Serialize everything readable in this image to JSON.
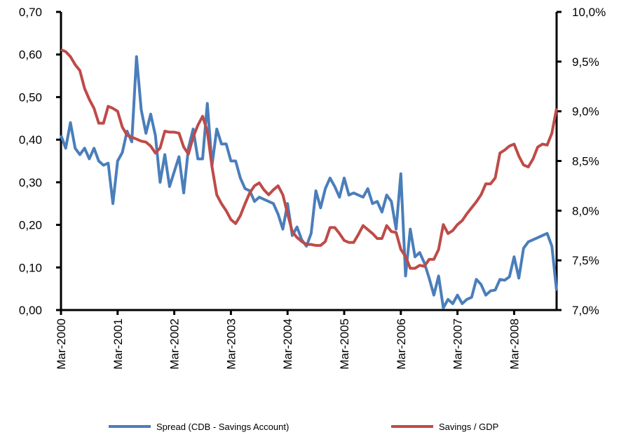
{
  "chart_data": {
    "type": "line",
    "categories": [
      "Mar-2000",
      null,
      null,
      null,
      null,
      null,
      null,
      null,
      null,
      null,
      null,
      null,
      "Mar-2001",
      null,
      null,
      null,
      null,
      null,
      null,
      null,
      null,
      null,
      null,
      null,
      "Mar-2002",
      null,
      null,
      null,
      null,
      null,
      null,
      null,
      null,
      null,
      null,
      null,
      "Mar-2003",
      null,
      null,
      null,
      null,
      null,
      null,
      null,
      null,
      null,
      null,
      null,
      "Mar-2004",
      null,
      null,
      null,
      null,
      null,
      null,
      null,
      null,
      null,
      null,
      null,
      "Mar-2005",
      null,
      null,
      null,
      null,
      null,
      null,
      null,
      null,
      null,
      null,
      null,
      "Mar-2006",
      null,
      null,
      null,
      null,
      null,
      null,
      null,
      null,
      null,
      null,
      null,
      "Mar-2007",
      null,
      null,
      null,
      null,
      null,
      null,
      null,
      null,
      null,
      null,
      null,
      "Mar-2008",
      null,
      null,
      null,
      null,
      null,
      null,
      null,
      null,
      null
    ],
    "series": [
      {
        "name": "Spread (CDB - Savings Account)",
        "color": "#4a7ebb",
        "axis": "y",
        "values": [
          0.41,
          0.38,
          0.44,
          0.38,
          0.365,
          0.38,
          0.355,
          0.38,
          0.35,
          0.34,
          0.345,
          0.25,
          0.35,
          0.37,
          0.42,
          0.395,
          0.595,
          0.47,
          0.415,
          0.46,
          0.41,
          0.3,
          0.365,
          0.29,
          0.325,
          0.36,
          0.275,
          0.38,
          0.425,
          0.355,
          0.355,
          0.485,
          0.34,
          0.425,
          0.39,
          0.39,
          0.35,
          0.35,
          0.31,
          0.285,
          0.28,
          0.255,
          0.265,
          0.26,
          0.255,
          0.25,
          0.225,
          0.19,
          0.25,
          0.175,
          0.195,
          0.165,
          0.15,
          0.18,
          0.28,
          0.24,
          0.285,
          0.31,
          0.29,
          0.265,
          0.31,
          0.27,
          0.275,
          0.27,
          0.265,
          0.285,
          0.25,
          0.255,
          0.23,
          0.27,
          0.255,
          0.19,
          0.32,
          0.08,
          0.19,
          0.125,
          0.135,
          0.11,
          0.075,
          0.035,
          0.08,
          0.005,
          0.025,
          0.015,
          0.035,
          0.015,
          0.025,
          0.03,
          0.072,
          0.06,
          0.035,
          0.045,
          0.047,
          0.072,
          0.07,
          0.078,
          0.125,
          0.075,
          0.145,
          0.16,
          0.165,
          0.17,
          0.175,
          0.18,
          0.15,
          0.045
        ]
      },
      {
        "name": "Savings / GDP",
        "color": "#be4b48",
        "axis": "y2",
        "values": [
          9.62,
          9.6,
          9.55,
          9.47,
          9.41,
          9.23,
          9.12,
          9.03,
          8.88,
          8.88,
          9.05,
          9.03,
          9.0,
          8.84,
          8.76,
          8.74,
          8.72,
          8.7,
          8.69,
          8.65,
          8.58,
          8.63,
          8.8,
          8.79,
          8.79,
          8.78,
          8.64,
          8.57,
          8.74,
          8.86,
          8.95,
          8.8,
          8.44,
          8.16,
          8.07,
          8.0,
          7.91,
          7.87,
          7.95,
          8.07,
          8.18,
          8.25,
          8.28,
          8.21,
          8.16,
          8.21,
          8.25,
          8.16,
          7.97,
          7.79,
          7.73,
          7.69,
          7.66,
          7.66,
          7.65,
          7.65,
          7.69,
          7.83,
          7.83,
          7.77,
          7.7,
          7.68,
          7.68,
          7.76,
          7.85,
          7.81,
          7.77,
          7.72,
          7.72,
          7.85,
          7.79,
          7.78,
          7.61,
          7.54,
          7.42,
          7.42,
          7.45,
          7.44,
          7.51,
          7.51,
          7.61,
          7.86,
          7.77,
          7.8,
          7.86,
          7.9,
          7.97,
          8.03,
          8.09,
          8.16,
          8.27,
          8.27,
          8.33,
          8.58,
          8.61,
          8.65,
          8.67,
          8.55,
          8.46,
          8.44,
          8.52,
          8.64,
          8.67,
          8.66,
          8.78,
          9.03
        ]
      }
    ],
    "ylim": [
      0,
      0.7
    ],
    "yticks": [
      {
        "value": 0,
        "label": "0,00"
      },
      {
        "value": 0.1,
        "label": "0,10"
      },
      {
        "value": 0.2,
        "label": "0,20"
      },
      {
        "value": 0.3,
        "label": "0,30"
      },
      {
        "value": 0.4,
        "label": "0,40"
      },
      {
        "value": 0.5,
        "label": "0,50"
      },
      {
        "value": 0.6,
        "label": "0,60"
      },
      {
        "value": 0.7,
        "label": "0,70"
      }
    ],
    "y2lim": [
      7.0,
      10.0
    ],
    "y2ticks": [
      {
        "value": 7.0,
        "label": "7,0%"
      },
      {
        "value": 7.5,
        "label": "7,5%"
      },
      {
        "value": 8.0,
        "label": "8,0%"
      },
      {
        "value": 8.5,
        "label": "8,5%"
      },
      {
        "value": 9.0,
        "label": "9,0%"
      },
      {
        "value": 9.5,
        "label": "9,5%"
      },
      {
        "value": 10.0,
        "label": "10,0%"
      }
    ],
    "legend": "bottom"
  }
}
